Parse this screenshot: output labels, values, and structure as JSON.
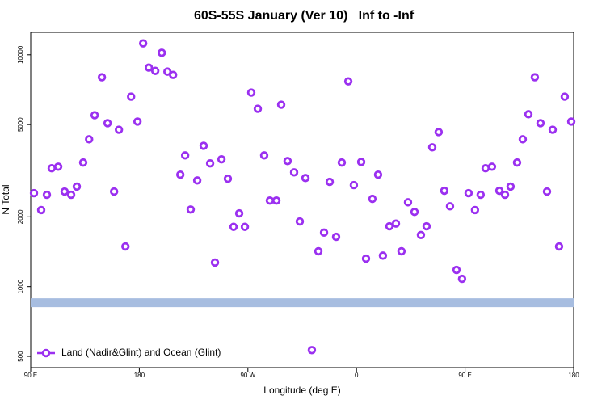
{
  "chart_data": {
    "type": "scatter",
    "title": "60S-55S January (Ver 10)   Inf to -Inf",
    "x_label": "Longitude (deg E)",
    "y_label": "N Total",
    "xlim": [
      90,
      540
    ],
    "xticks": [
      {
        "value": 90,
        "label": "90 E"
      },
      180,
      {
        "value": 270,
        "label": "90 W"
      },
      {
        "value": 360,
        "label": "0"
      },
      {
        "value": 450,
        "label": "90 E"
      },
      {
        "value": 540,
        "label": "180"
      }
    ],
    "ylim": [
      447,
      12500
    ],
    "ylog": true,
    "yticks": [
      500,
      1000,
      2000,
      5000,
      10000
    ],
    "legend": "bottom-left",
    "band": {
      "value": 852,
      "color": "#a7bde0"
    },
    "series": [
      {
        "name": "Land (Nadir&Glint) and Ocean (Glint)",
        "color": "#9b30f0",
        "x": [
          92.7,
          98.7,
          103.4,
          107.4,
          112.8,
          118.1,
          123.5,
          128.2,
          133.5,
          138.4,
          143.0,
          149.0,
          153.7,
          159.1,
          163.1,
          168.5,
          173.2,
          178.5,
          183.2,
          187.9,
          193.2,
          198.6,
          203.3,
          208.0,
          214.0,
          218.0,
          222.6,
          228.0,
          233.3,
          238.7,
          242.7,
          248.1,
          253.4,
          258.1,
          262.8,
          267.5,
          272.8,
          278.2,
          283.5,
          288.2,
          293.6,
          297.6,
          302.9,
          308.3,
          313.0,
          317.7,
          323.0,
          328.4,
          333.1,
          337.8,
          343.1,
          347.8,
          353.2,
          357.8,
          363.9,
          367.9,
          373.2,
          377.9,
          381.9,
          387.3,
          392.7,
          397.3,
          402.7,
          408.1,
          413.4,
          418.1,
          422.8,
          428.1,
          432.8,
          437.5,
          442.9,
          447.5,
          452.9,
          458.2,
          462.9,
          467.0,
          472.3,
          478.4,
          483.1,
          487.7,
          493.1,
          497.8,
          502.5,
          507.8,
          512.5,
          517.9,
          522.6,
          527.9,
          532.6,
          538.0
        ],
        "values": [
          2530,
          2140,
          2490,
          3240,
          3290,
          2570,
          2490,
          2700,
          3430,
          4320,
          5490,
          8000,
          5070,
          2570,
          4750,
          1490,
          6600,
          5150,
          11200,
          8800,
          8520,
          10200,
          8460,
          8190,
          3040,
          3680,
          2150,
          2870,
          4050,
          3400,
          1270,
          3540,
          2920,
          1810,
          2070,
          1810,
          6870,
          5850,
          3680,
          2350,
          2350,
          6090,
          3480,
          3110,
          1910,
          2940,
          532,
          1420,
          1710,
          2830,
          1640,
          3430,
          7680,
          2740,
          3450,
          1320,
          2390,
          3040,
          1360,
          1820,
          1870,
          1420,
          2310,
          2100,
          1670,
          1820,
          3990,
          4640,
          2590,
          2220,
          1180,
          1080,
          2530,
          2140,
          2490,
          3240,
          3290,
          2590,
          2490,
          2700,
          3430,
          4320,
          5540,
          8000,
          5070,
          2570,
          4750,
          1490,
          6600,
          5150
        ]
      }
    ]
  }
}
